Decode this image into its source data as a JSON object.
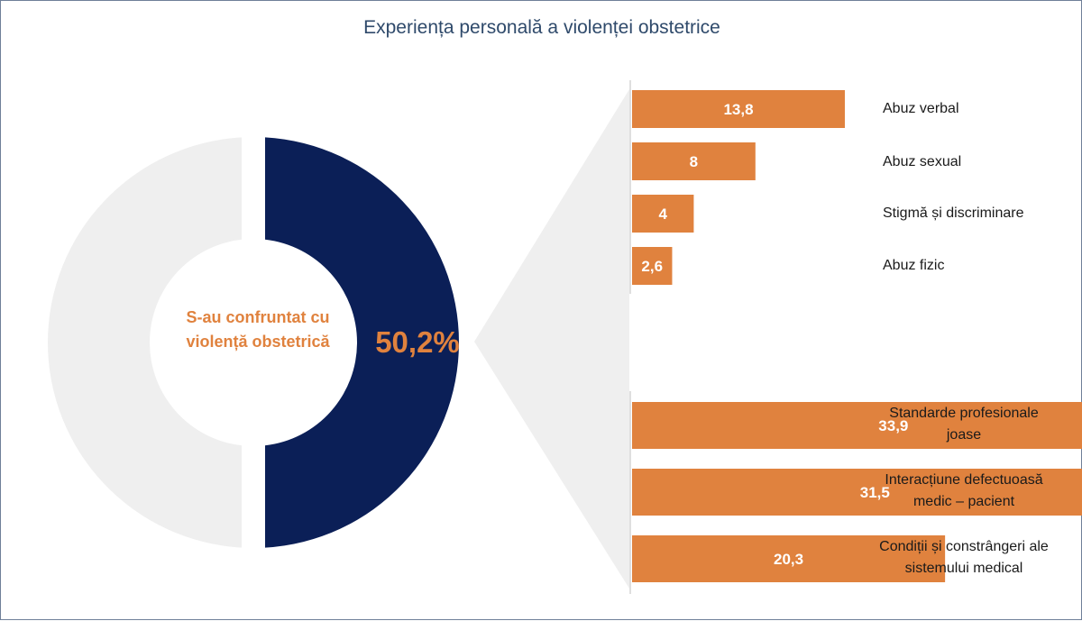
{
  "title": "Experiența personală a violenței obstetrice",
  "colors": {
    "navy": "#0b1f57",
    "light_gray": "#efefef",
    "orange": "#e0823e",
    "bar_text": "#ffffff"
  },
  "chart_data": [
    {
      "type": "pie",
      "title": "Experiența personală a violenței obstetrice",
      "center_label": "S-au confruntat cu violență obstetrică",
      "value_label": "50,2%",
      "slices": [
        {
          "name": "S-au confruntat cu violență obstetrică",
          "value": 50.2
        },
        {
          "name": "",
          "value": 49.8
        }
      ]
    },
    {
      "type": "bar",
      "orientation": "horizontal",
      "categories": [
        "Abuz verbal",
        "Abuz sexual",
        "Stigmă și discriminare",
        "Abuz fizic"
      ],
      "values": [
        13.8,
        8,
        4,
        2.6
      ],
      "value_labels": [
        "13,8",
        "8",
        "4",
        "2,6"
      ]
    },
    {
      "type": "bar",
      "orientation": "horizontal",
      "categories": [
        "Standarde profesionale joase",
        "Interacțiune defectuoasă medic – pacient",
        "Condiții și constrângeri ale sistemului medical"
      ],
      "category_lines": [
        [
          "Standarde profesionale",
          "joase"
        ],
        [
          "Interacțiune defectuoasă",
          "medic – pacient"
        ],
        [
          "Condiții și constrângeri ale",
          "sistemului medical"
        ]
      ],
      "values": [
        33.9,
        31.5,
        20.3
      ],
      "value_labels": [
        "33,9",
        "31,5",
        "20,3"
      ]
    }
  ]
}
